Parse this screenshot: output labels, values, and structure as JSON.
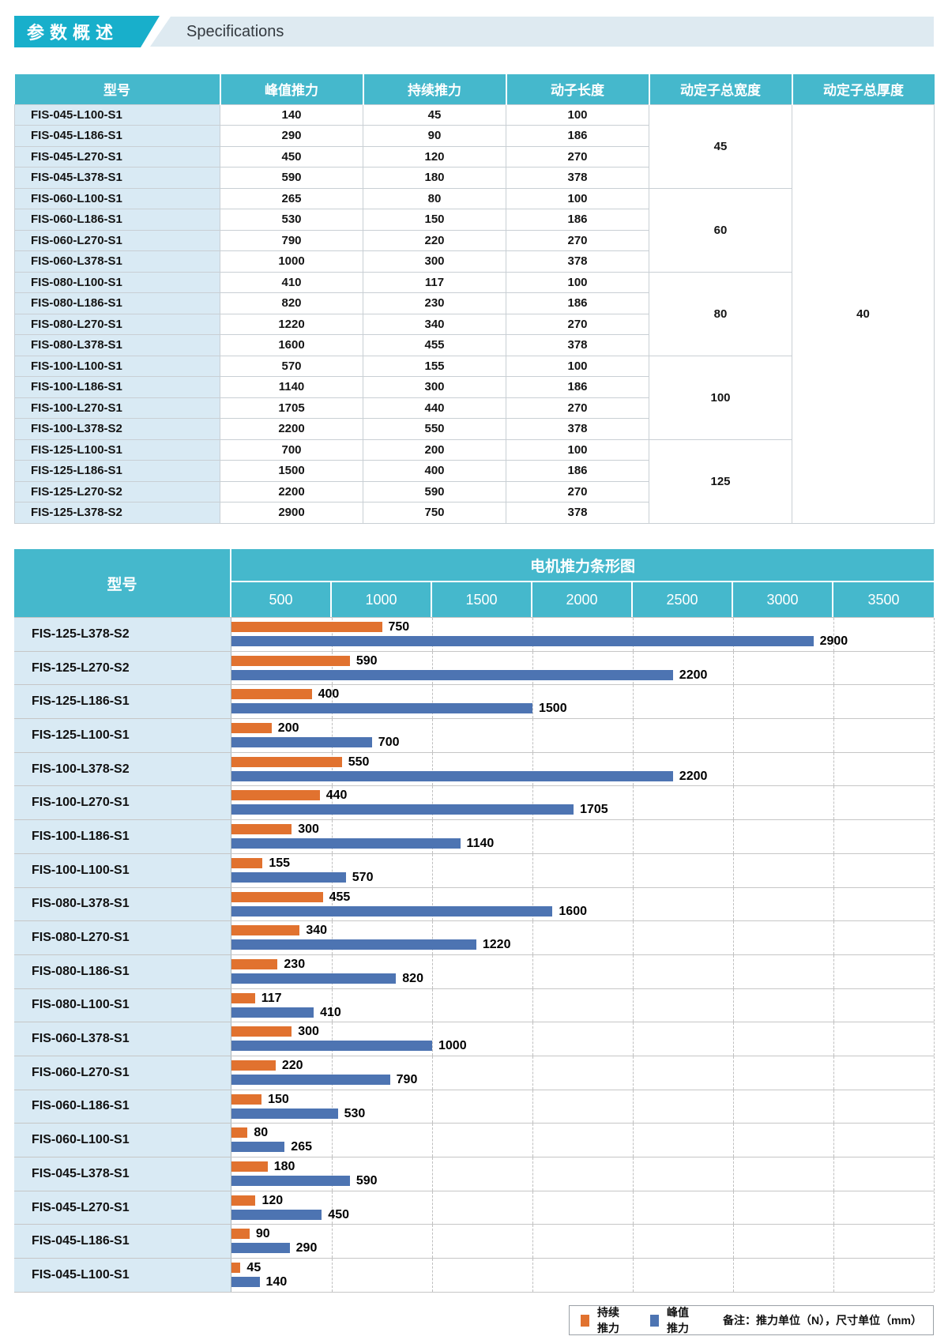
{
  "header": {
    "title_zh": "参数概述",
    "title_en": "Specifications"
  },
  "colors": {
    "teal_header": "#45B8CC",
    "badge_teal": "#18AFCB",
    "strip_bg": "#DEEAF1",
    "label_column_bg": "#D9EAF4",
    "orange_bar": "#E1722F",
    "blue_bar": "#4D74B2",
    "grid_line": "#C9CFD4"
  },
  "spec_table": {
    "headers": [
      "型号",
      "峰值推力",
      "持续推力",
      "动子长度",
      "动定子总宽度",
      "动定子总厚度"
    ],
    "rows": [
      [
        "FIS-045-L100-S1",
        "140",
        "45",
        "100"
      ],
      [
        "FIS-045-L186-S1",
        "290",
        "90",
        "186"
      ],
      [
        "FIS-045-L270-S1",
        "450",
        "120",
        "270"
      ],
      [
        "FIS-045-L378-S1",
        "590",
        "180",
        "378"
      ],
      [
        "FIS-060-L100-S1",
        "265",
        "80",
        "100"
      ],
      [
        "FIS-060-L186-S1",
        "530",
        "150",
        "186"
      ],
      [
        "FIS-060-L270-S1",
        "790",
        "220",
        "270"
      ],
      [
        "FIS-060-L378-S1",
        "1000",
        "300",
        "378"
      ],
      [
        "FIS-080-L100-S1",
        "410",
        "117",
        "100"
      ],
      [
        "FIS-080-L186-S1",
        "820",
        "230",
        "186"
      ],
      [
        "FIS-080-L270-S1",
        "1220",
        "340",
        "270"
      ],
      [
        "FIS-080-L378-S1",
        "1600",
        "455",
        "378"
      ],
      [
        "FIS-100-L100-S1",
        "570",
        "155",
        "100"
      ],
      [
        "FIS-100-L186-S1",
        "1140",
        "300",
        "186"
      ],
      [
        "FIS-100-L270-S1",
        "1705",
        "440",
        "270"
      ],
      [
        "FIS-100-L378-S2",
        "2200",
        "550",
        "378"
      ],
      [
        "FIS-125-L100-S1",
        "700",
        "200",
        "100"
      ],
      [
        "FIS-125-L186-S1",
        "1500",
        "400",
        "186"
      ],
      [
        "FIS-125-L270-S2",
        "2200",
        "590",
        "270"
      ],
      [
        "FIS-125-L378-S2",
        "2900",
        "750",
        "378"
      ]
    ],
    "width_groups": [
      {
        "value": "45",
        "rows": 4
      },
      {
        "value": "60",
        "rows": 4
      },
      {
        "value": "80",
        "rows": 4
      },
      {
        "value": "100",
        "rows": 4
      },
      {
        "value": "125",
        "rows": 4
      }
    ],
    "thickness_group": {
      "value": "40",
      "rows": 20
    }
  },
  "chart_data": {
    "type": "bar",
    "orientation": "horizontal",
    "title": "电机推力条形图",
    "model_header": "型号",
    "x_ticks": [
      500,
      1000,
      1500,
      2000,
      2500,
      3000,
      3500
    ],
    "x_max": 3500,
    "grid": "dashed-vertical",
    "legend_position": "bottom-right",
    "legend": [
      {
        "label": "持续推力",
        "color": "#E1722F"
      },
      {
        "label": "峰值推力",
        "color": "#4D74B2"
      }
    ],
    "note": "备注：推力单位（N），尺寸单位（mm）",
    "rows": [
      {
        "model": "FIS-125-L378-S2",
        "continuous": 750,
        "peak": 2900
      },
      {
        "model": "FIS-125-L270-S2",
        "continuous": 590,
        "peak": 2200
      },
      {
        "model": "FIS-125-L186-S1",
        "continuous": 400,
        "peak": 1500
      },
      {
        "model": "FIS-125-L100-S1",
        "continuous": 200,
        "peak": 700
      },
      {
        "model": "FIS-100-L378-S2",
        "continuous": 550,
        "peak": 2200
      },
      {
        "model": "FIS-100-L270-S1",
        "continuous": 440,
        "peak": 1705
      },
      {
        "model": "FIS-100-L186-S1",
        "continuous": 300,
        "peak": 1140
      },
      {
        "model": "FIS-100-L100-S1",
        "continuous": 155,
        "peak": 570
      },
      {
        "model": "FIS-080-L378-S1",
        "continuous": 455,
        "peak": 1600
      },
      {
        "model": "FIS-080-L270-S1",
        "continuous": 340,
        "peak": 1220
      },
      {
        "model": "FIS-080-L186-S1",
        "continuous": 230,
        "peak": 820
      },
      {
        "model": "FIS-080-L100-S1",
        "continuous": 117,
        "peak": 410
      },
      {
        "model": "FIS-060-L378-S1",
        "continuous": 300,
        "peak": 1000
      },
      {
        "model": "FIS-060-L270-S1",
        "continuous": 220,
        "peak": 790
      },
      {
        "model": "FIS-060-L186-S1",
        "continuous": 150,
        "peak": 530
      },
      {
        "model": "FIS-060-L100-S1",
        "continuous": 80,
        "peak": 265
      },
      {
        "model": "FIS-045-L378-S1",
        "continuous": 180,
        "peak": 590
      },
      {
        "model": "FIS-045-L270-S1",
        "continuous": 120,
        "peak": 450
      },
      {
        "model": "FIS-045-L186-S1",
        "continuous": 90,
        "peak": 290
      },
      {
        "model": "FIS-045-L100-S1",
        "continuous": 45,
        "peak": 140
      }
    ]
  }
}
